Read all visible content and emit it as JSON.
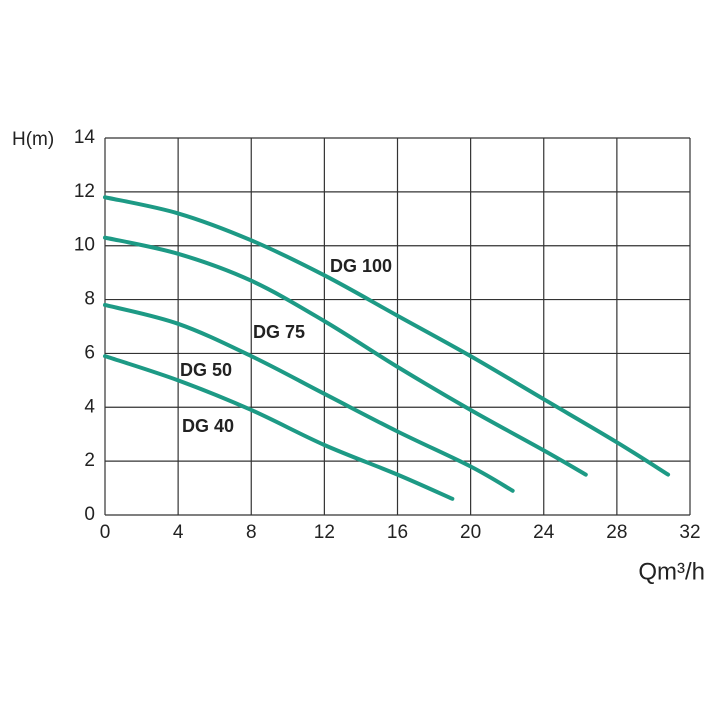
{
  "chart_data": {
    "type": "line",
    "y_label": "H(m)",
    "x_label": "Qm³/h",
    "xlim": [
      0,
      32
    ],
    "xticks": [
      0,
      4,
      8,
      12,
      16,
      20,
      24,
      28,
      32
    ],
    "ylim": [
      0,
      14
    ],
    "yticks": [
      0,
      2,
      4,
      6,
      8,
      10,
      12,
      14
    ],
    "grid": true,
    "series": [
      {
        "name": "DG 100",
        "color": "#1d9a85",
        "x": [
          0,
          4,
          8,
          12,
          16,
          20,
          24,
          28,
          30.8
        ],
        "values": [
          11.8,
          11.2,
          10.2,
          8.9,
          7.4,
          5.9,
          4.3,
          2.7,
          1.5
        ]
      },
      {
        "name": "DG 75",
        "color": "#1d9a85",
        "x": [
          0,
          4,
          8,
          12,
          16,
          20,
          24,
          26.3
        ],
        "values": [
          10.3,
          9.7,
          8.7,
          7.2,
          5.5,
          3.9,
          2.4,
          1.5
        ]
      },
      {
        "name": "DG 50",
        "color": "#1d9a85",
        "x": [
          0,
          4,
          8,
          12,
          16,
          20,
          22.3
        ],
        "values": [
          7.8,
          7.1,
          5.9,
          4.5,
          3.1,
          1.8,
          0.9
        ]
      },
      {
        "name": "DG 40",
        "color": "#1d9a85",
        "x": [
          0,
          4,
          8,
          12,
          16,
          19
        ],
        "values": [
          5.9,
          5.0,
          3.9,
          2.6,
          1.5,
          0.6
        ]
      }
    ]
  }
}
